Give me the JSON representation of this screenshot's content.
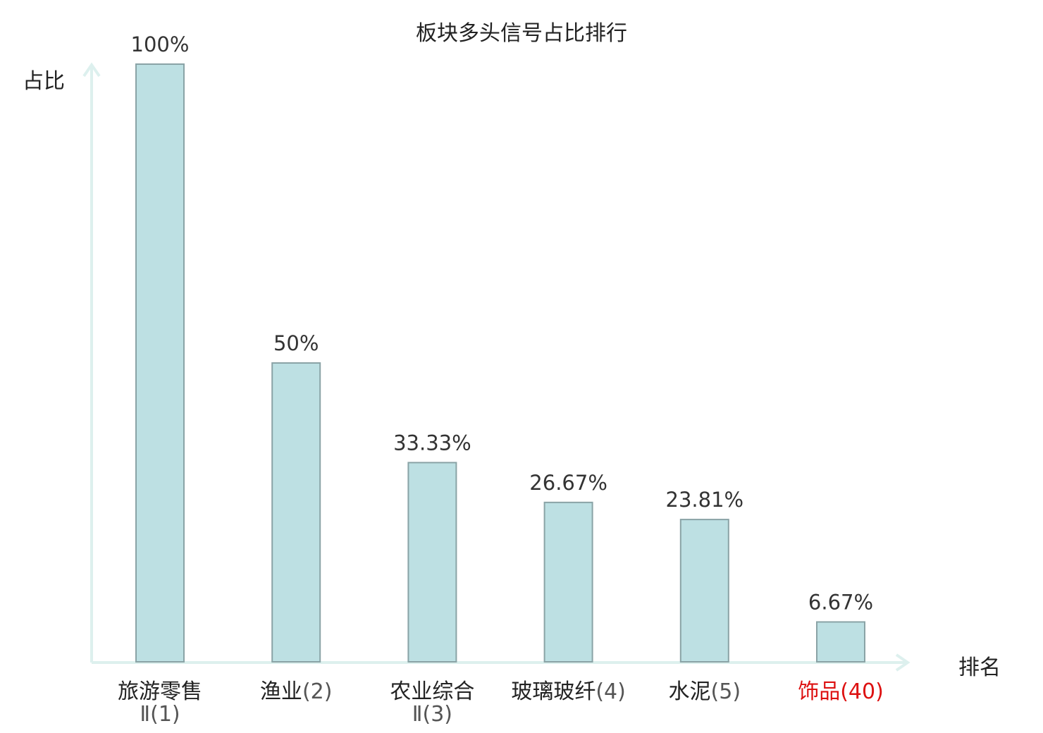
{
  "chart_data": {
    "type": "bar",
    "title": "板块多头信号占比排行",
    "ylabel": "占比",
    "xlabel": "排名",
    "ylim": [
      0,
      100
    ],
    "grid": false,
    "categories": [
      {
        "name": "旅游零售",
        "name2": "Ⅱ",
        "rank": "(1)",
        "highlight": false
      },
      {
        "name": "渔业",
        "name2": "",
        "rank": "(2)",
        "highlight": false
      },
      {
        "name": "农业综合",
        "name2": "Ⅱ",
        "rank": "(3)",
        "highlight": false
      },
      {
        "name": "玻璃玻纤",
        "name2": "",
        "rank": "(4)",
        "highlight": false
      },
      {
        "name": "水泥",
        "name2": "",
        "rank": "(5)",
        "highlight": false
      },
      {
        "name": "饰品",
        "name2": "",
        "rank": "(40)",
        "highlight": true
      }
    ],
    "values": [
      100,
      50,
      33.33,
      26.67,
      23.81,
      6.67
    ],
    "value_labels": [
      "100%",
      "50%",
      "33.33%",
      "26.67%",
      "23.81%",
      "6.67%"
    ]
  },
  "colors": {
    "bar_fill": "#bde0e3",
    "bar_stroke": "#8aa3a6",
    "axis": "#ddf0ee",
    "text": "#222222",
    "value_text": "#333333",
    "highlight": "#dd1111"
  }
}
